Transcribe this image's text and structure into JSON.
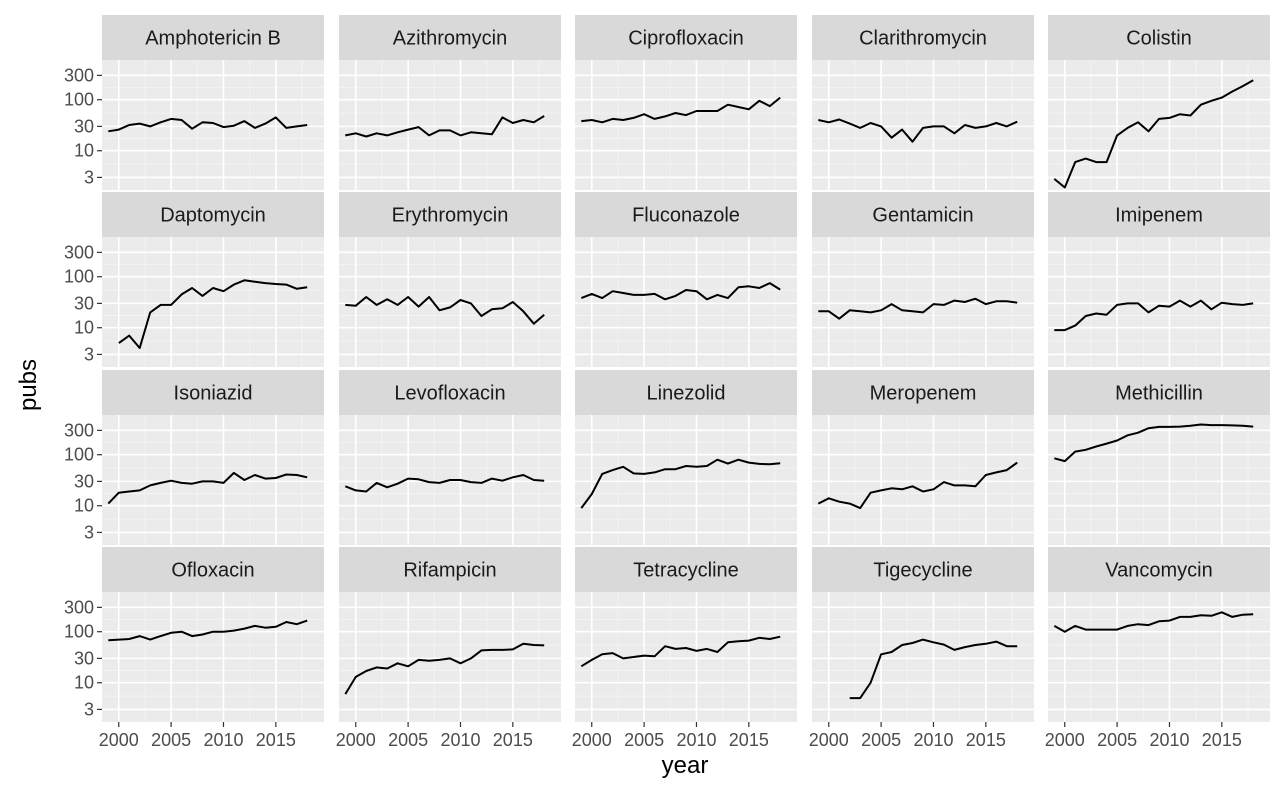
{
  "chart_data": {
    "type": "line",
    "layout": "facet-wrap",
    "xlabel": "year",
    "ylabel": "pubs",
    "yscale": "log10",
    "ylim": [
      1.7,
      600
    ],
    "xlim": [
      1998.4,
      2019.6
    ],
    "x_ticks": [
      2000,
      2005,
      2010,
      2015
    ],
    "x_tick_labels": [
      "2000",
      "2005",
      "2010",
      "2015"
    ],
    "y_ticks": [
      3,
      10,
      30,
      100,
      300
    ],
    "y_tick_labels": [
      "3",
      "10",
      "30",
      "100",
      "300"
    ],
    "colors": {
      "panel_bg": "#ebebeb",
      "grid_major": "#ffffff",
      "grid_minor": "#f5f5f5",
      "strip_bg": "#d9d9d9",
      "line": "#000000"
    },
    "years": [
      1999,
      2000,
      2001,
      2002,
      2003,
      2004,
      2005,
      2006,
      2007,
      2008,
      2009,
      2010,
      2011,
      2012,
      2013,
      2014,
      2015,
      2016,
      2017,
      2018,
      2019
    ],
    "series": [
      {
        "name": "Amphotericin B",
        "values": [
          24,
          26,
          32,
          34,
          30,
          36,
          42,
          40,
          27,
          36,
          35,
          29,
          31,
          38,
          28,
          34,
          45,
          28,
          30,
          32,
          null
        ]
      },
      {
        "name": "Azithromycin",
        "values": [
          20,
          22,
          19,
          22,
          20,
          23,
          26,
          29,
          20,
          25,
          25,
          20,
          23,
          22,
          21,
          45,
          35,
          40,
          36,
          48,
          null
        ]
      },
      {
        "name": "Ciprofloxacin",
        "values": [
          38,
          40,
          36,
          42,
          40,
          44,
          52,
          42,
          47,
          55,
          50,
          60,
          60,
          60,
          80,
          72,
          65,
          95,
          75,
          110,
          null
        ]
      },
      {
        "name": "Clarithromycin",
        "values": [
          40,
          36,
          41,
          34,
          28,
          35,
          30,
          18,
          26,
          15,
          28,
          30,
          30,
          22,
          32,
          28,
          30,
          35,
          30,
          37,
          null
        ]
      },
      {
        "name": "Colistin",
        "values": [
          2.8,
          1.9,
          6,
          7,
          6,
          6,
          20,
          28,
          36,
          24,
          42,
          44,
          52,
          49,
          80,
          95,
          110,
          145,
          185,
          240,
          null
        ]
      },
      {
        "name": "Daptomycin",
        "values": [
          null,
          5,
          7,
          4,
          20,
          28,
          28,
          45,
          60,
          42,
          60,
          52,
          70,
          85,
          80,
          75,
          72,
          70,
          58,
          62,
          null
        ]
      },
      {
        "name": "Erythromycin",
        "values": [
          28,
          27,
          40,
          28,
          36,
          28,
          40,
          26,
          40,
          22,
          25,
          35,
          30,
          17,
          23,
          24,
          32,
          21,
          12,
          18,
          null
        ]
      },
      {
        "name": "Fluconazole",
        "values": [
          38,
          46,
          38,
          52,
          48,
          44,
          44,
          46,
          36,
          42,
          55,
          52,
          36,
          44,
          38,
          62,
          65,
          60,
          75,
          56,
          null
        ]
      },
      {
        "name": "Gentamicin",
        "values": [
          21,
          21,
          15,
          22,
          21,
          20,
          22,
          29,
          22,
          21,
          20,
          29,
          28,
          34,
          32,
          37,
          29,
          33,
          33,
          31,
          null
        ]
      },
      {
        "name": "Imipenem",
        "values": [
          9,
          9,
          11,
          17,
          19,
          18,
          28,
          30,
          30,
          20,
          27,
          26,
          34,
          26,
          34,
          23,
          31,
          29,
          28,
          30,
          null
        ]
      },
      {
        "name": "Isoniazid",
        "values": [
          11,
          18,
          19,
          20,
          25,
          28,
          31,
          28,
          27,
          30,
          30,
          28,
          44,
          32,
          40,
          34,
          35,
          41,
          40,
          36,
          null
        ]
      },
      {
        "name": "Levofloxacin",
        "values": [
          24,
          20,
          19,
          28,
          23,
          27,
          34,
          33,
          29,
          28,
          32,
          32,
          29,
          28,
          34,
          31,
          36,
          40,
          32,
          31,
          null
        ]
      },
      {
        "name": "Linezolid",
        "values": [
          9,
          17,
          42,
          50,
          58,
          43,
          42,
          45,
          52,
          52,
          60,
          58,
          60,
          80,
          67,
          80,
          70,
          66,
          65,
          68,
          null
        ]
      },
      {
        "name": "Meropenem",
        "values": [
          11,
          14,
          12,
          11,
          9,
          18,
          20,
          22,
          21,
          24,
          19,
          21,
          29,
          25,
          25,
          24,
          40,
          45,
          50,
          70,
          null
        ]
      },
      {
        "name": "Methicillin",
        "values": [
          85,
          75,
          115,
          125,
          145,
          165,
          190,
          240,
          270,
          330,
          350,
          350,
          355,
          370,
          390,
          380,
          380,
          375,
          370,
          355,
          null
        ]
      },
      {
        "name": "Ofloxacin",
        "values": [
          68,
          70,
          72,
          82,
          70,
          82,
          95,
          100,
          82,
          88,
          100,
          100,
          105,
          115,
          130,
          120,
          125,
          155,
          140,
          165,
          null
        ]
      },
      {
        "name": "Rifampicin",
        "values": [
          6,
          13,
          17,
          20,
          19,
          24,
          21,
          28,
          27,
          28,
          30,
          24,
          30,
          43,
          44,
          44,
          45,
          58,
          55,
          54,
          null
        ]
      },
      {
        "name": "Tetracycline",
        "values": [
          21,
          28,
          36,
          38,
          30,
          32,
          34,
          33,
          52,
          46,
          48,
          42,
          46,
          40,
          62,
          65,
          67,
          76,
          72,
          80,
          null
        ]
      },
      {
        "name": "Tigecycline",
        "values": [
          null,
          null,
          null,
          5,
          5,
          10,
          36,
          40,
          55,
          60,
          70,
          62,
          56,
          44,
          50,
          55,
          58,
          64,
          52,
          52,
          null
        ]
      },
      {
        "name": "Vancomycin",
        "values": [
          130,
          100,
          130,
          110,
          110,
          110,
          110,
          130,
          140,
          135,
          160,
          165,
          195,
          195,
          210,
          205,
          240,
          195,
          215,
          220,
          null
        ]
      }
    ]
  }
}
